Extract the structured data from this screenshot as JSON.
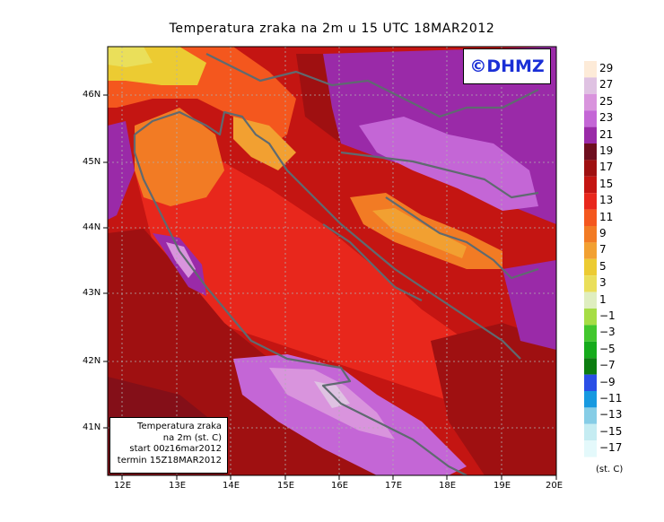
{
  "title": "Temperatura zraka na 2m u 15 UTC 18MAR2012",
  "copyright": "©DHMZ",
  "infobox": {
    "line1": "Temperatura zraka",
    "line2": "na 2m (st. C)",
    "line3": "start 00z16mar2012",
    "line4": "termin 15Z18MAR2012"
  },
  "x_ticks": [
    "12E",
    "13E",
    "14E",
    "15E",
    "16E",
    "17E",
    "18E",
    "19E",
    "20E"
  ],
  "y_ticks": [
    "46N",
    "45N",
    "44N",
    "43N",
    "42N",
    "41N"
  ],
  "legend": {
    "units": "(st. C)",
    "levels": [
      "29",
      "27",
      "25",
      "23",
      "21",
      "19",
      "17",
      "15",
      "13",
      "11",
      "9",
      "7",
      "5",
      "3",
      "1",
      "-1",
      "-3",
      "-5",
      "-7",
      "-9",
      "-11",
      "-13",
      "-15",
      "-17"
    ],
    "colors": [
      "#fdebd8",
      "#dfc2e2",
      "#d994dd",
      "#c466d6",
      "#9a2aa8",
      "#6e0e1f",
      "#9f1011",
      "#c41512",
      "#e8271c",
      "#f4571e",
      "#f27b24",
      "#f2a031",
      "#eccb32",
      "#eadf5a",
      "#dfeec0",
      "#a6dd45",
      "#42c72d",
      "#15ab1b",
      "#0c7d10",
      "#2a4ee6",
      "#1699e0",
      "#86cde6",
      "#c5ecf2",
      "#e4f9fb"
    ]
  },
  "extent": {
    "lon": [
      11.8,
      20.0
    ],
    "lat": [
      40.3,
      46.7
    ]
  }
}
